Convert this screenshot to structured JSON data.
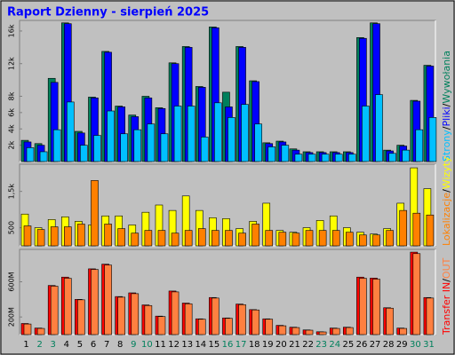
{
  "chart_data": [
    {
      "type": "bar",
      "title": "Raport Dzienny -  sierpień 2025",
      "ylim": [
        0,
        17300
      ],
      "yticks": [
        {
          "value": 2000,
          "label": "2k"
        },
        {
          "value": 4000,
          "label": "4k"
        },
        {
          "value": 6000,
          "label": "6k"
        },
        {
          "value": 8000,
          "label": "8k"
        },
        {
          "value": 12000,
          "label": "12k"
        },
        {
          "value": 16000,
          "label": "16k"
        }
      ],
      "series": [
        {
          "name": "Wywołania",
          "color": "#00805c",
          "values": [
            2600,
            2200,
            10200,
            17000,
            3700,
            7900,
            13500,
            6800,
            5700,
            8000,
            6600,
            12100,
            14100,
            9200,
            16500,
            8500,
            14100,
            9900,
            2300,
            2500,
            1550,
            1200,
            1200,
            1200,
            1200,
            15200,
            17000,
            1400,
            2000,
            7500,
            11800
          ]
        },
        {
          "name": "Pliki",
          "color": "#0000ff",
          "values": [
            2400,
            2000,
            9700,
            16900,
            3500,
            7800,
            13400,
            6700,
            5500,
            7800,
            6500,
            12000,
            14000,
            9100,
            16400,
            6700,
            14000,
            9800,
            2200,
            2400,
            1400,
            1100,
            1100,
            1100,
            1100,
            15100,
            16900,
            1300,
            1900,
            7400,
            11700
          ]
        },
        {
          "name": "Strony",
          "color": "#00c0ff",
          "values": [
            1700,
            1200,
            3900,
            7300,
            2000,
            3200,
            6200,
            3400,
            3900,
            4600,
            3400,
            6800,
            6800,
            3000,
            7200,
            5400,
            7000,
            4600,
            1800,
            2000,
            900,
            900,
            900,
            900,
            900,
            6800,
            8200,
            1000,
            1400,
            3900,
            5400
          ]
        }
      ]
    },
    {
      "type": "bar",
      "ylim": [
        0,
        2250
      ],
      "yticks": [
        500,
        {
          "value": 1500,
          "label": "1,5k"
        }
      ],
      "series": [
        {
          "name": "Wizyty",
          "color": "#ffff00",
          "values": [
            875,
            500,
            725,
            800,
            675,
            575,
            825,
            825,
            575,
            925,
            1125,
            975,
            1375,
            975,
            775,
            750,
            475,
            675,
            1175,
            425,
            375,
            500,
            700,
            825,
            500,
            375,
            325,
            475,
            1175,
            2150,
            1575
          ]
        },
        {
          "name": "Lokalizacje",
          "color": "#ff8000",
          "values": [
            550,
            450,
            525,
            525,
            600,
            1800,
            600,
            475,
            350,
            425,
            425,
            350,
            425,
            475,
            425,
            425,
            350,
            600,
            425,
            375,
            350,
            425,
            425,
            425,
            375,
            300,
            300,
            425,
            975,
            900,
            850
          ]
        }
      ]
    },
    {
      "type": "bar",
      "label": "Transfer",
      "ylim": [
        0,
        968
      ],
      "yticks": [
        {
          "value": 200,
          "label": "200M"
        },
        {
          "value": 600,
          "label": "600M"
        }
      ],
      "categories": [
        "1",
        "2",
        "3",
        "4",
        "5",
        "6",
        "7",
        "8",
        "9",
        "10",
        "11",
        "12",
        "13",
        "14",
        "15",
        "16",
        "17",
        "18",
        "19",
        "20",
        "21",
        "22",
        "23",
        "24",
        "25",
        "26",
        "27",
        "28",
        "29",
        "30",
        "31"
      ],
      "category_colors": [
        "#000000",
        "#00805c",
        "#00805c",
        "#000000",
        "#000000",
        "#000000",
        "#000000",
        "#000000",
        "#00805c",
        "#00805c",
        "#000000",
        "#000000",
        "#000000",
        "#000000",
        "#000000",
        "#00805c",
        "#00805c",
        "#000000",
        "#000000",
        "#000000",
        "#000000",
        "#000000",
        "#00805c",
        "#00805c",
        "#000000",
        "#000000",
        "#000000",
        "#000000",
        "#000000",
        "#00805c",
        "#00805c"
      ],
      "series": [
        {
          "name": "IN",
          "color": "#ff0000",
          "values": [
            126,
            74,
            558,
            653,
            400,
            747,
            800,
            432,
            474,
            337,
            210,
            495,
            358,
            179,
            421,
            189,
            347,
            284,
            179,
            105,
            84,
            53,
            32,
            74,
            84,
            653,
            642,
            305,
            74,
            937,
            421
          ]
        },
        {
          "name": "OUT",
          "color": "#ff8040",
          "values": [
            120,
            70,
            550,
            640,
            395,
            740,
            790,
            425,
            465,
            330,
            205,
            485,
            350,
            175,
            415,
            185,
            340,
            280,
            175,
            100,
            80,
            50,
            30,
            70,
            80,
            640,
            630,
            300,
            70,
            920,
            415
          ]
        }
      ]
    }
  ]
}
